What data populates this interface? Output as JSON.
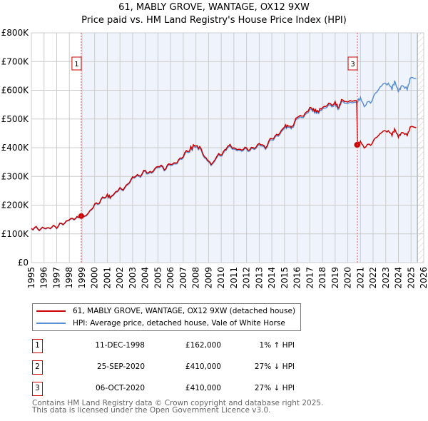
{
  "chart_data": {
    "type": "line",
    "title": "61, MABLY GROVE, WANTAGE, OX12 9XW",
    "subtitle": "Price paid vs. HM Land Registry's House Price Index (HPI)",
    "ylim": [
      0,
      800000
    ],
    "xlim": [
      1995,
      2026
    ],
    "yticks": [
      "£0",
      "£100K",
      "£200K",
      "£300K",
      "£400K",
      "£500K",
      "£600K",
      "£700K",
      "£800K"
    ],
    "xticks": [
      "1995",
      "1996",
      "1997",
      "1998",
      "1999",
      "2000",
      "2001",
      "2002",
      "2003",
      "2004",
      "2005",
      "2006",
      "2007",
      "2008",
      "2009",
      "2010",
      "2011",
      "2012",
      "2013",
      "2014",
      "2015",
      "2016",
      "2017",
      "2018",
      "2019",
      "2020",
      "2021",
      "2022",
      "2023",
      "2024",
      "2025",
      "2026"
    ],
    "series": [
      {
        "name": "HPI: Average price, detached house, Vale of White Horse",
        "color": "#5b8fd4",
        "x": [
          1995,
          1995.5,
          1996,
          1996.5,
          1997,
          1997.5,
          1998,
          1998.5,
          1998.9,
          1999.5,
          2000,
          2000.5,
          2001,
          2001.3,
          2002,
          2002.5,
          2003,
          2003.5,
          2004,
          2004.5,
          2005,
          2005.5,
          2006,
          2006.5,
          2007,
          2007.5,
          2007.9,
          2008.3,
          2008.8,
          2009.2,
          2009.8,
          2010.3,
          2010.6,
          2011,
          2011.5,
          2012,
          2012.5,
          2013,
          2013.5,
          2014,
          2014.5,
          2015,
          2015.3,
          2015.6,
          2016,
          2016.5,
          2017,
          2017.3,
          2017.6,
          2018,
          2018.5,
          2019,
          2019.3,
          2019.5,
          2020,
          2020.7,
          2021,
          2021.3,
          2021.8,
          2022.3,
          2022.8,
          2023.2,
          2023.5,
          2023.7,
          2024,
          2024.3,
          2024.7,
          2025,
          2025.4
        ],
        "y": [
          120,
          117,
          118,
          121,
          125,
          135,
          148,
          155,
          160,
          172,
          198,
          215,
          235,
          225,
          252,
          262,
          295,
          300,
          315,
          310,
          335,
          325,
          340,
          345,
          370,
          390,
          405,
          395,
          360,
          340,
          370,
          385,
          408,
          392,
          390,
          393,
          392,
          410,
          398,
          430,
          440,
          470,
          475,
          465,
          505,
          505,
          535,
          530,
          520,
          535,
          545,
          550,
          535,
          560,
          552,
          555,
          570,
          548,
          560,
          595,
          625,
          620,
          605,
          632,
          600,
          615,
          605,
          645,
          640
        ]
      },
      {
        "name": "61, MABLY GROVE, WANTAGE, OX12 9XW (detached house)",
        "color": "#cc0000"
      }
    ],
    "sales": [
      {
        "n": "1",
        "x": 1998.94,
        "y": 162000
      },
      {
        "n": "2",
        "x": 2020.73,
        "y": 410000
      },
      {
        "n": "3",
        "x": 2020.76,
        "y": 410000
      }
    ],
    "markers_shown": [
      "1",
      "3"
    ]
  },
  "legend": {
    "red": "61, MABLY GROVE, WANTAGE, OX12 9XW (detached house)",
    "blue": "HPI: Average price, detached house, Vale of White Horse"
  },
  "transactions": [
    {
      "n": "1",
      "date": "11-DEC-1998",
      "price": "£162,000",
      "hpi": "1% ↑ HPI"
    },
    {
      "n": "2",
      "date": "25-SEP-2020",
      "price": "£410,000",
      "hpi": "27% ↓ HPI"
    },
    {
      "n": "3",
      "date": "06-OCT-2020",
      "price": "£410,000",
      "hpi": "27% ↓ HPI"
    }
  ],
  "footer": {
    "line1": "Contains HM Land Registry data © Crown copyright and database right 2025.",
    "line2": "This data is licensed under the Open Government Licence v3.0."
  }
}
